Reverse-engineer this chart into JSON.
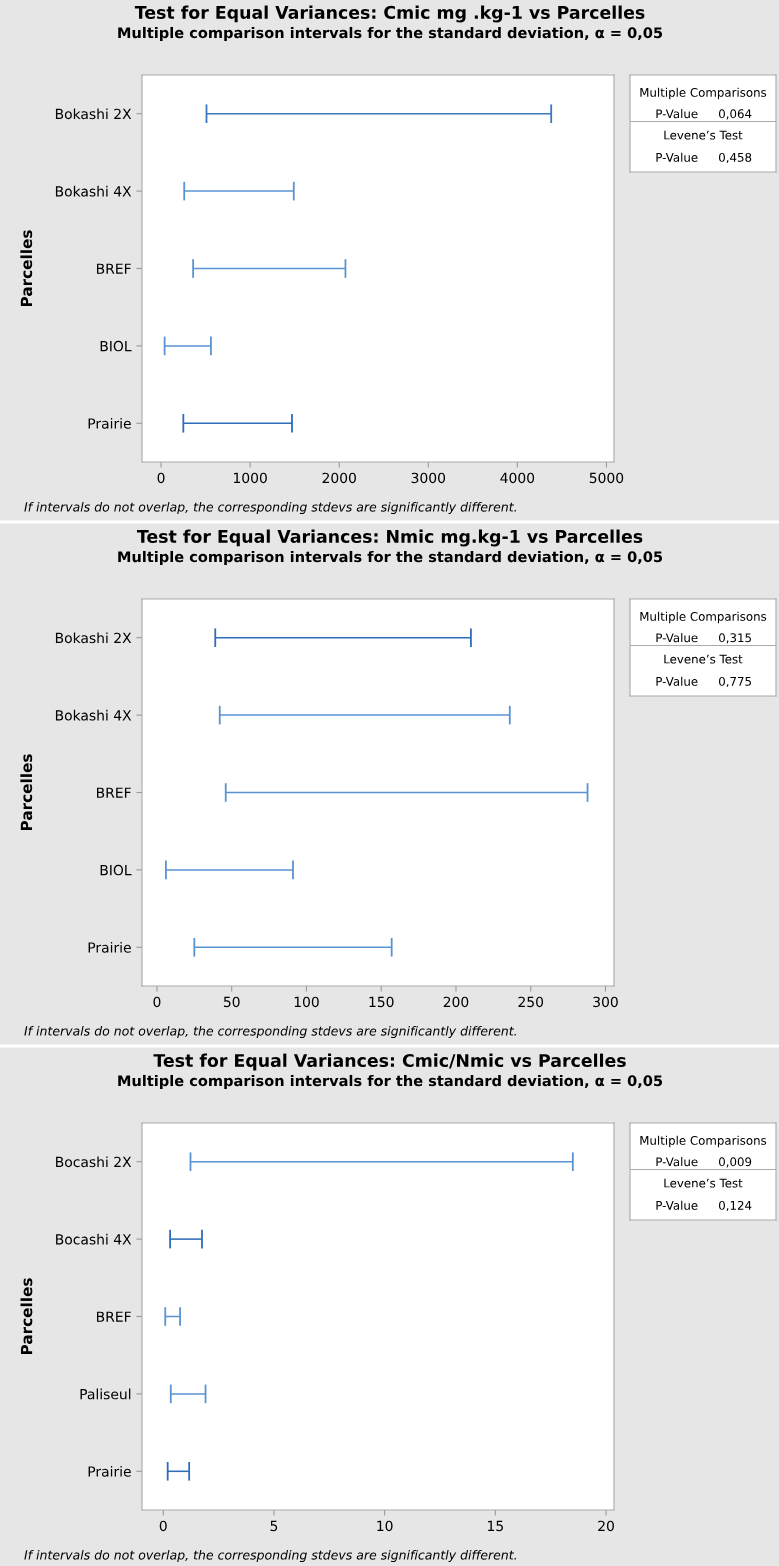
{
  "chart_data": [
    {
      "type": "bar",
      "orientation": "horizontal",
      "title": "Test for Equal Variances: Cmic mg .kg-1 vs Parcelles",
      "subtitle": "Multiple comparison intervals for the standard deviation, α = 0,05",
      "ylabel": "Parcelles",
      "categories": [
        "Bokashi 2X",
        "Bokashi 4X",
        "BREF",
        "BIOL",
        "Prairie"
      ],
      "base": [
        510,
        260,
        360,
        40,
        250
      ],
      "values": [
        3870,
        1230,
        1710,
        520,
        1220
      ],
      "colors": [
        "#3b78c2",
        "#5a93d2",
        "#5a93d2",
        "#5a93d2",
        "#2f6db8"
      ],
      "xlim": [
        -214,
        5085
      ],
      "xticks": [
        0,
        1000,
        2000,
        3000,
        4000,
        5000
      ],
      "annotations": [
        "Multiple Comparisons",
        "P-Value",
        "0,064",
        "Levene’s Test",
        "P-Value",
        "0,458",
        "If intervals do not overlap, the corresponding stdevs are significantly different."
      ]
    },
    {
      "type": "bar",
      "orientation": "horizontal",
      "title": "Test for Equal Variances: Nmic mg.kg-1 vs Parcelles",
      "subtitle": "Multiple comparison intervals for the standard deviation, α = 0,05",
      "ylabel": "Parcelles",
      "categories": [
        "Bokashi 2X",
        "Bokashi 4X",
        "BREF",
        "BIOL",
        "Prairie"
      ],
      "base": [
        39,
        42,
        46,
        6,
        25
      ],
      "values": [
        171,
        194,
        242,
        85,
        132
      ],
      "colors": [
        "#2f6db8",
        "#5a93d2",
        "#5a93d2",
        "#5a93d2",
        "#5a93d2"
      ],
      "xlim": [
        -10,
        305.7
      ],
      "xticks": [
        0,
        50,
        100,
        150,
        200,
        250,
        300
      ],
      "annotations": [
        "Multiple Comparisons",
        "P-Value",
        "0,315",
        "Levene’s Test",
        "P-Value",
        "0,775",
        "If intervals do not overlap, the corresponding stdevs are significantly different."
      ]
    },
    {
      "type": "bar",
      "orientation": "horizontal",
      "title": "Test for Equal Variances: Cmic/Nmic vs Parcelles",
      "subtitle": "Multiple comparison intervals for the standard deviation, α = 0,05",
      "ylabel": "Parcelles",
      "categories": [
        "Bocashi 2X",
        "Bocashi 4X",
        "BREF",
        "Paliseul",
        "Prairie"
      ],
      "base": [
        1.23,
        0.31,
        0.09,
        0.34,
        0.2
      ],
      "values": [
        17.27,
        1.44,
        0.67,
        1.57,
        0.97
      ],
      "colors": [
        "#5a93d2",
        "#2f6db8",
        "#5a93d2",
        "#5a93d2",
        "#2f6db8"
      ],
      "xlim": [
        -0.96,
        20.36
      ],
      "xticks": [
        0,
        5,
        10,
        15,
        20
      ],
      "annotations": [
        "Multiple Comparisons",
        "P-Value",
        "0,009",
        "Levene’s Test",
        "P-Value",
        "0,124",
        "If intervals do not overlap, the corresponding stdevs are significantly different."
      ]
    }
  ]
}
